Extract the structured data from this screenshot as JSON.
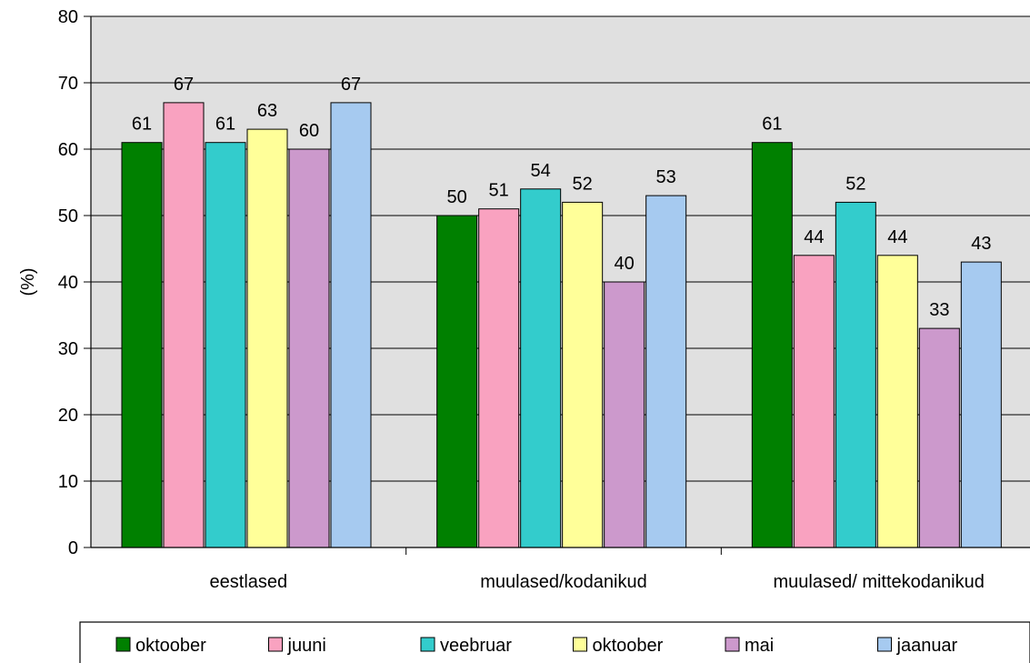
{
  "chart_data": {
    "type": "bar",
    "title": "",
    "xlabel": "",
    "ylabel": "(%)",
    "ylim": [
      0,
      80
    ],
    "yticks": [
      0,
      10,
      20,
      30,
      40,
      50,
      60,
      70,
      80
    ],
    "grid": true,
    "legend_position": "bottom",
    "categories": [
      "eestlased",
      "muulased/kodanikud",
      "muulased/ mittekodanikud"
    ],
    "series": [
      {
        "name": "oktoober",
        "color": "#008000",
        "values": [
          61,
          50,
          61
        ]
      },
      {
        "name": "juuni",
        "color": "#F9A2C0",
        "values": [
          67,
          51,
          44
        ]
      },
      {
        "name": "veebruar",
        "color": "#33CCCC",
        "values": [
          61,
          54,
          52
        ]
      },
      {
        "name": "oktoober",
        "color": "#FFFF99",
        "values": [
          63,
          52,
          44
        ]
      },
      {
        "name": "mai",
        "color": "#CC99CC",
        "values": [
          60,
          40,
          33
        ]
      },
      {
        "name": "jaanuar",
        "color": "#A6CAF0",
        "values": [
          67,
          53,
          43
        ]
      }
    ]
  }
}
